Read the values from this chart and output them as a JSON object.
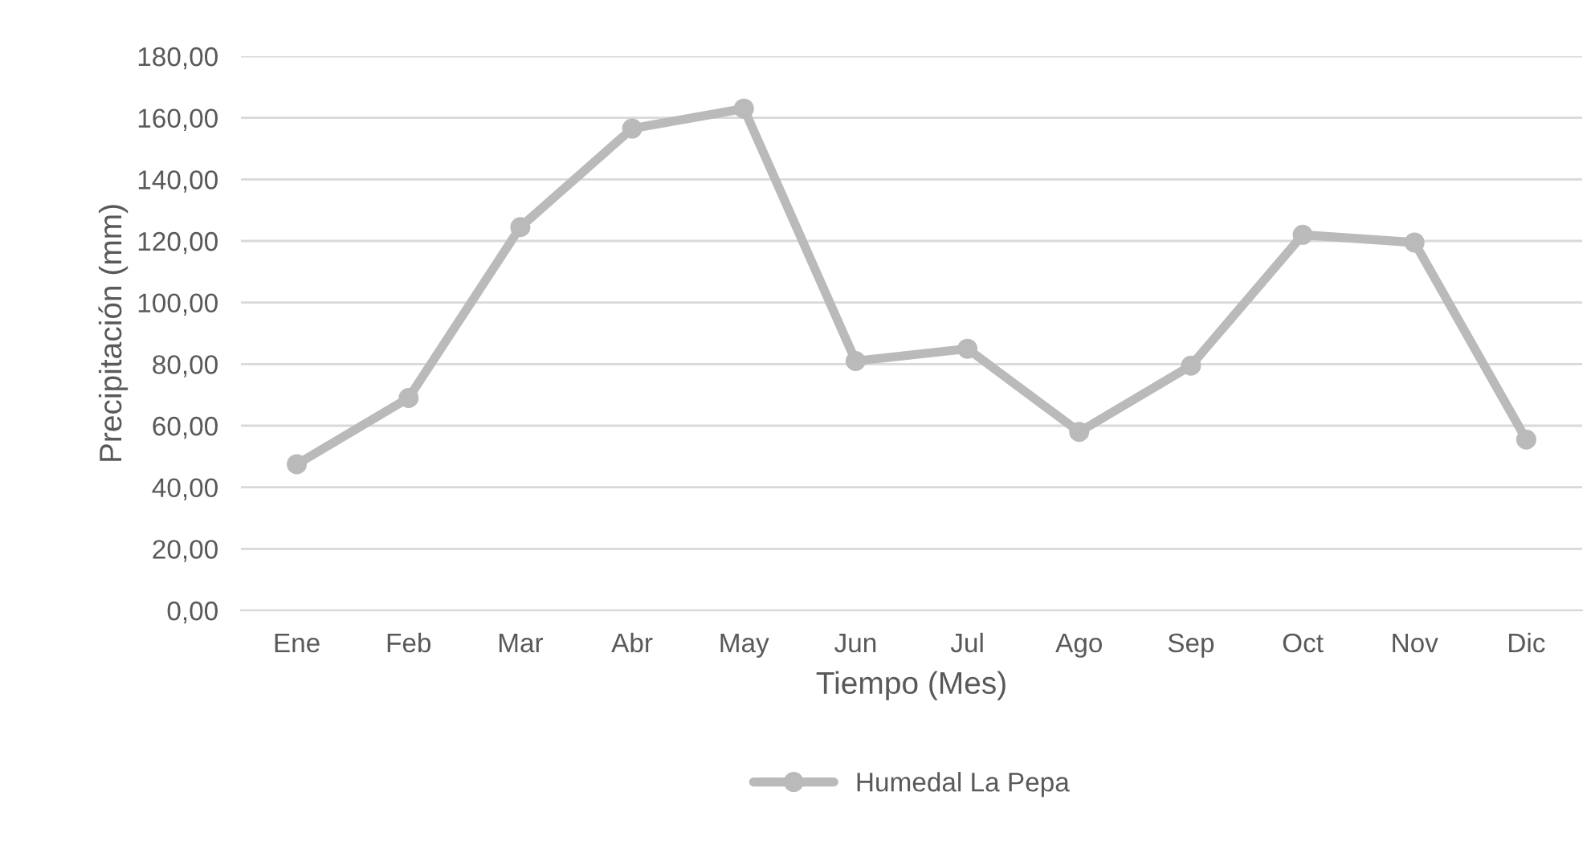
{
  "chart_data": {
    "type": "line",
    "xlabel": "Tiempo (Mes)",
    "ylabel": "Precipitación (mm)",
    "categories": [
      "Ene",
      "Feb",
      "Mar",
      "Abr",
      "May",
      "Jun",
      "Jul",
      "Ago",
      "Sep",
      "Oct",
      "Nov",
      "Dic"
    ],
    "series": [
      {
        "name": "Humedal La Pepa",
        "color": "#bababa",
        "values": [
          47.5,
          69,
          124.5,
          156.5,
          163,
          81,
          85,
          58,
          79.5,
          122,
          119.5,
          55.5
        ]
      }
    ],
    "ylim": [
      0,
      180
    ],
    "yticks": [
      {
        "value": 0,
        "label": "0,00"
      },
      {
        "value": 20,
        "label": "20,00"
      },
      {
        "value": 40,
        "label": "40,00"
      },
      {
        "value": 60,
        "label": "60,00"
      },
      {
        "value": 80,
        "label": "80,00"
      },
      {
        "value": 100,
        "label": "100,00"
      },
      {
        "value": 120,
        "label": "120,00"
      },
      {
        "value": 140,
        "label": "140,00"
      },
      {
        "value": 160,
        "label": "160,00"
      },
      {
        "value": 180,
        "label": "180,00"
      }
    ],
    "grid": "y",
    "legend": "bottom",
    "marker": "circle",
    "line_style": "solid"
  }
}
